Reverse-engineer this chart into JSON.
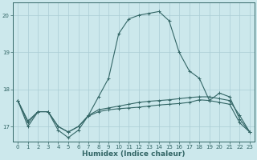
{
  "xlabel": "Humidex (Indice chaleur)",
  "x": [
    0,
    1,
    2,
    3,
    4,
    5,
    6,
    7,
    8,
    9,
    10,
    11,
    12,
    13,
    14,
    15,
    16,
    17,
    18,
    19,
    20,
    21,
    22,
    23
  ],
  "line1": [
    17.7,
    17.0,
    17.4,
    17.4,
    16.9,
    16.7,
    16.9,
    17.3,
    17.8,
    18.3,
    19.5,
    19.9,
    20.0,
    20.05,
    20.1,
    19.85,
    19.0,
    18.5,
    18.3,
    17.7,
    17.9,
    17.8,
    17.2,
    16.85
  ],
  "line2": [
    17.7,
    17.15,
    17.4,
    17.4,
    17.0,
    16.85,
    17.0,
    17.3,
    17.45,
    17.5,
    17.55,
    17.6,
    17.65,
    17.68,
    17.7,
    17.72,
    17.75,
    17.78,
    17.8,
    17.8,
    17.75,
    17.7,
    17.3,
    16.85
  ],
  "line3": [
    17.7,
    17.1,
    17.4,
    17.4,
    17.0,
    16.85,
    17.0,
    17.28,
    17.4,
    17.45,
    17.48,
    17.5,
    17.52,
    17.55,
    17.58,
    17.6,
    17.62,
    17.65,
    17.72,
    17.7,
    17.65,
    17.6,
    17.1,
    16.85
  ],
  "bg_color": "#cce8ec",
  "grid_color": "#aaccd4",
  "line_color": "#336666",
  "ylim": [
    16.6,
    20.35
  ],
  "xlim": [
    -0.5,
    23.5
  ],
  "yticks": [
    17,
    18,
    19,
    20
  ],
  "xticks": [
    0,
    1,
    2,
    3,
    4,
    5,
    6,
    7,
    8,
    9,
    10,
    11,
    12,
    13,
    14,
    15,
    16,
    17,
    18,
    19,
    20,
    21,
    22,
    23
  ]
}
